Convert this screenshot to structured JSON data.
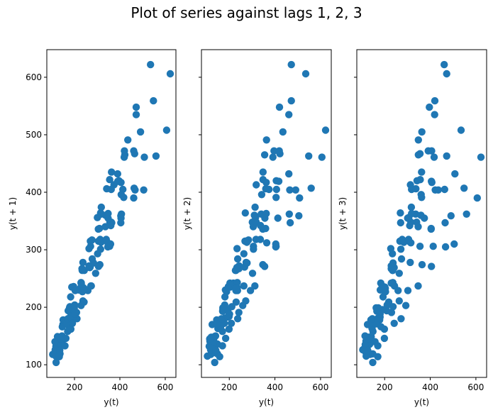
{
  "figure": {
    "title": "Plot of series against lags 1, 2, 3"
  },
  "chart_data": {
    "type": "scatter",
    "title": "Plot of series against lags 1, 2, 3",
    "marker_color": "#1f77b4",
    "series_values": [
      112,
      118,
      132,
      129,
      121,
      135,
      148,
      148,
      136,
      119,
      104,
      118,
      115,
      126,
      141,
      135,
      125,
      149,
      170,
      170,
      158,
      133,
      114,
      140,
      145,
      150,
      178,
      163,
      172,
      178,
      199,
      199,
      184,
      162,
      146,
      166,
      171,
      180,
      193,
      181,
      183,
      218,
      230,
      242,
      209,
      191,
      172,
      194,
      196,
      196,
      236,
      235,
      229,
      243,
      264,
      272,
      237,
      211,
      180,
      201,
      204,
      188,
      235,
      227,
      234,
      264,
      302,
      293,
      259,
      229,
      203,
      229,
      242,
      233,
      267,
      269,
      270,
      315,
      364,
      347,
      312,
      274,
      237,
      278,
      284,
      277,
      317,
      313,
      318,
      374,
      413,
      405,
      355,
      306,
      271,
      306,
      315,
      301,
      356,
      348,
      355,
      422,
      465,
      467,
      404,
      347,
      305,
      336,
      340,
      318,
      362,
      348,
      363,
      435,
      491,
      505,
      404,
      359,
      310,
      337,
      360,
      342,
      406,
      396,
      420,
      472,
      548,
      559,
      463,
      407,
      362,
      405,
      417,
      391,
      419,
      461,
      472,
      535,
      622,
      606,
      508,
      461,
      390,
      432
    ],
    "subplots": [
      {
        "lag": 1,
        "xlabel": "y(t)",
        "ylabel": "y(t + 1)",
        "xlim": [
          78,
          647
        ],
        "ylim": [
          78,
          648
        ],
        "xticks": [
          200,
          400,
          600
        ],
        "yticks": [
          100,
          200,
          300,
          400,
          500,
          600
        ],
        "show_ytick_labels": true
      },
      {
        "lag": 2,
        "xlabel": "y(t)",
        "ylabel": "y(t + 2)",
        "xlim": [
          78,
          647
        ],
        "ylim": [
          78,
          648
        ],
        "xticks": [
          200,
          400,
          600
        ],
        "yticks": [
          100,
          200,
          300,
          400,
          500,
          600
        ],
        "show_ytick_labels": false
      },
      {
        "lag": 3,
        "xlabel": "y(t)",
        "ylabel": "y(t + 3)",
        "xlim": [
          78,
          647
        ],
        "ylim": [
          78,
          648
        ],
        "xticks": [
          200,
          400,
          600
        ],
        "yticks": [
          100,
          200,
          300,
          400,
          500,
          600
        ],
        "show_ytick_labels": false
      }
    ],
    "sharey": true,
    "grid": false,
    "legend": null
  }
}
